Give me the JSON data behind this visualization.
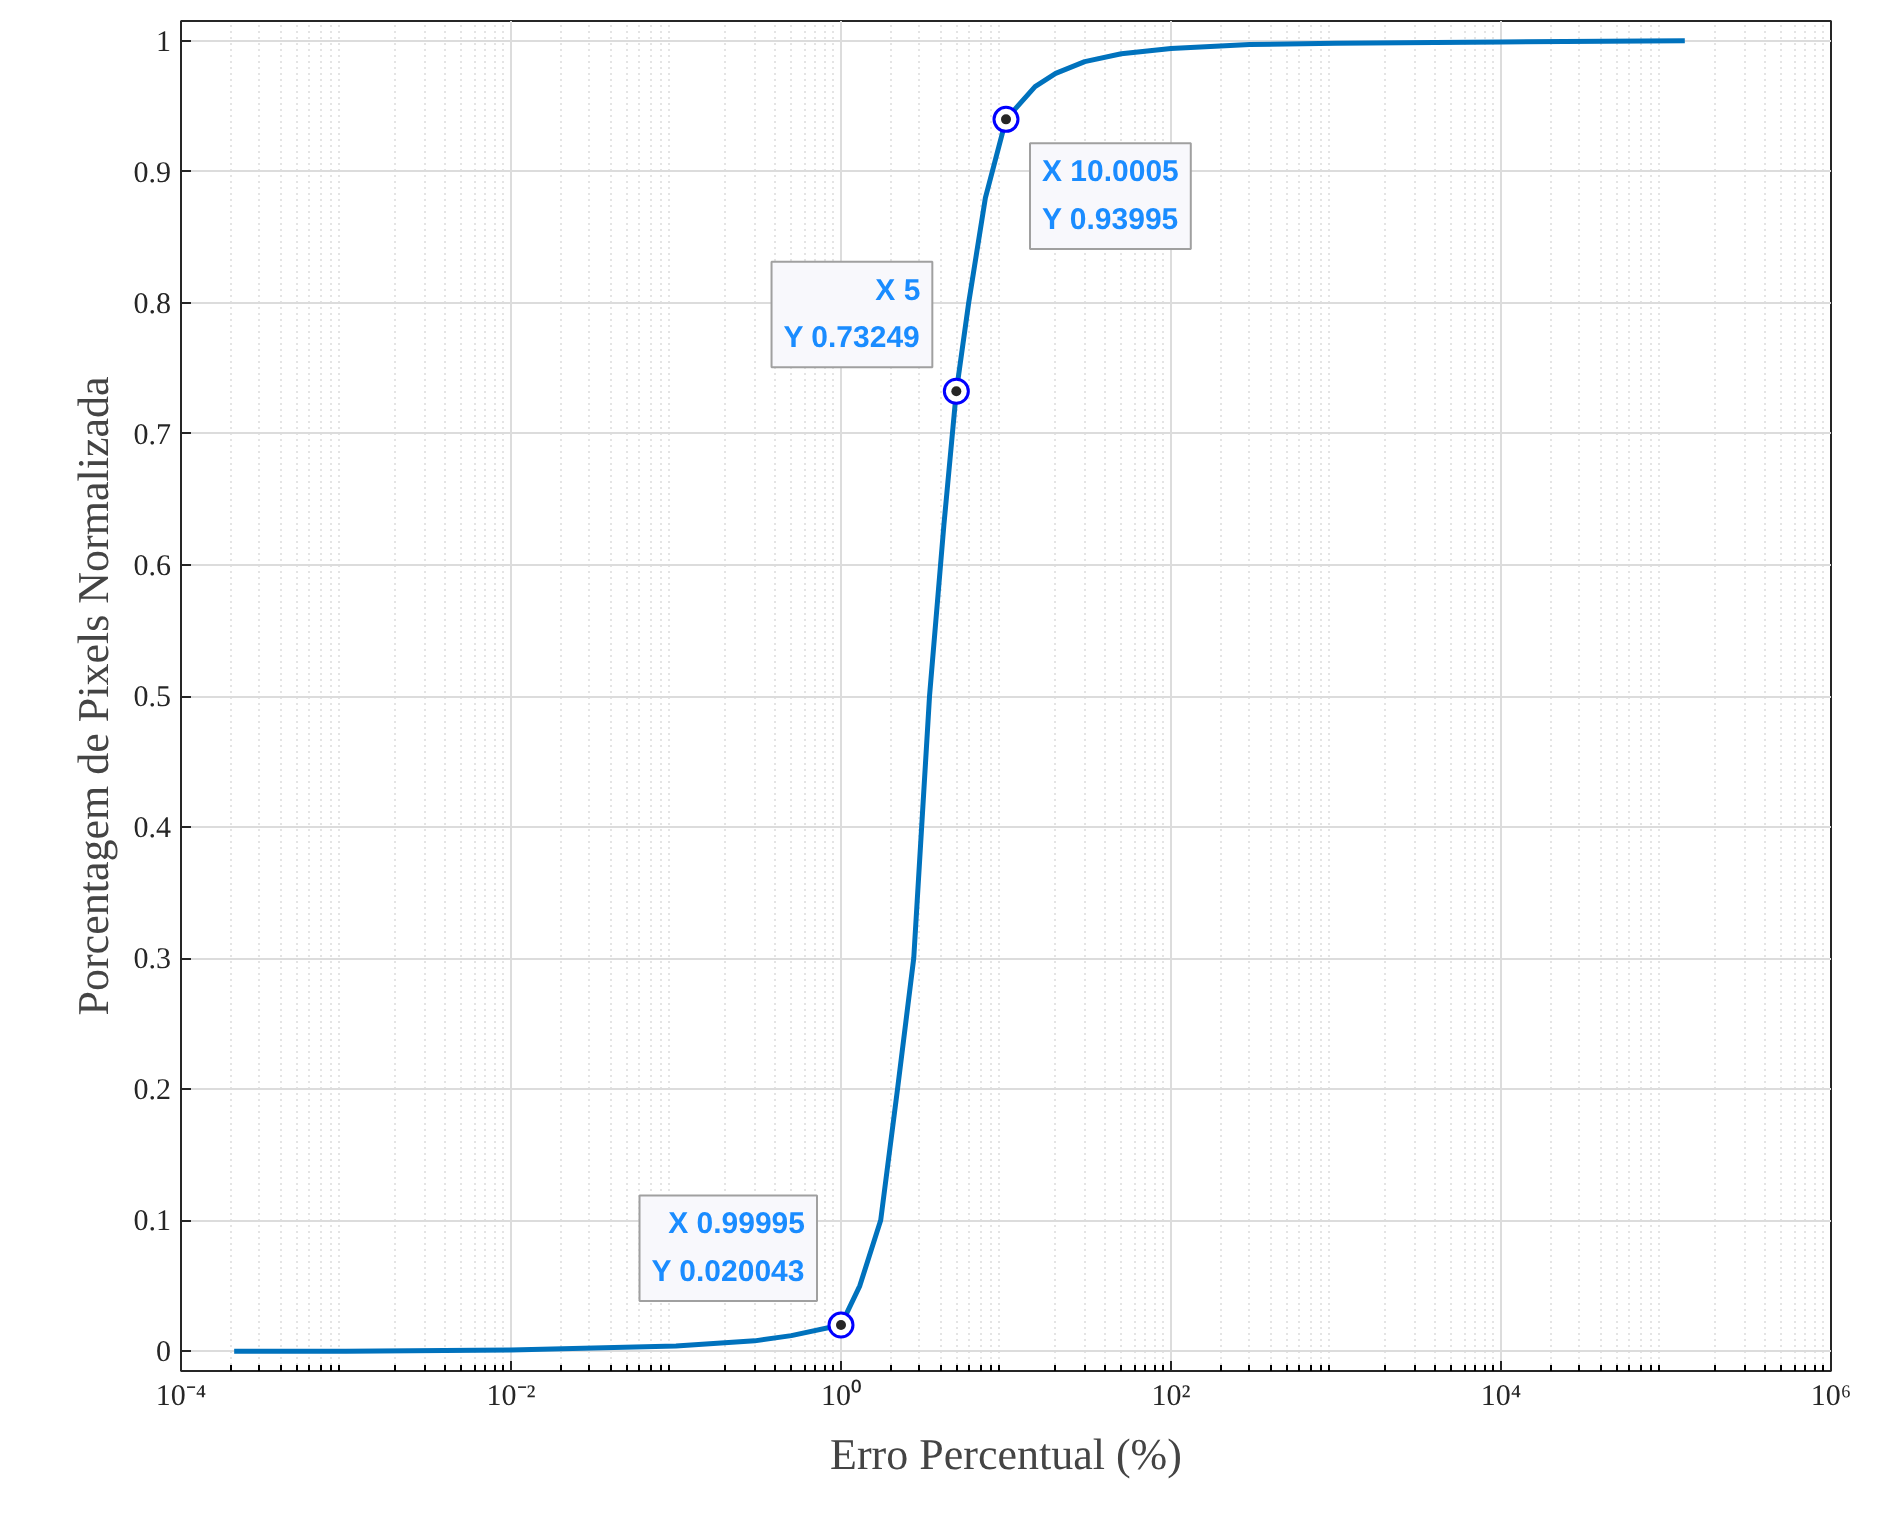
{
  "chart_data": {
    "type": "line",
    "xlabel": "Erro Percentual (%)",
    "ylabel": "Porcentagem de Pixels Normalizada",
    "x": [
      0.00021,
      0.001,
      0.01,
      0.1,
      0.3,
      0.5,
      0.99995,
      1.3,
      1.74,
      2.2,
      2.76,
      3.44,
      4.2,
      5,
      5.94,
      7.5,
      10.0005,
      15,
      20,
      30,
      50,
      100,
      300,
      1000,
      10000,
      130000
    ],
    "series": [
      {
        "color": "#0072bd",
        "values": [
          0,
          0,
          0.001,
          0.004,
          0.008,
          0.012,
          0.020043,
          0.05,
          0.1,
          0.2,
          0.3,
          0.5,
          0.63,
          0.73249,
          0.8,
          0.88,
          0.93995,
          0.965,
          0.975,
          0.984,
          0.99,
          0.994,
          0.997,
          0.998,
          0.999,
          1.0
        ]
      }
    ],
    "log": "x",
    "xlim": [
      0.0001,
      1000000
    ],
    "ylim": [
      -0.015,
      1.015
    ],
    "xticks": [
      {
        "value": 0.0001,
        "label": "10⁻⁴"
      },
      {
        "value": 0.01,
        "label": "10⁻²"
      },
      {
        "value": 1,
        "label": "10⁰"
      },
      {
        "value": 100,
        "label": "10²"
      },
      {
        "value": 10000,
        "label": "10⁴"
      },
      {
        "value": 1000000,
        "label": "10⁶"
      }
    ],
    "yticks": [
      0,
      0.1,
      0.2,
      0.3,
      0.4,
      0.5,
      0.6,
      0.7,
      0.8,
      0.9,
      1
    ],
    "grid": true,
    "line_style": "solid",
    "annotations": [
      {
        "text": "X 0.99995\nY 0.020043",
        "x": 0.99995,
        "y": 0.020043
      },
      {
        "text": "X 5\nY 0.73249",
        "x": 5,
        "y": 0.73249
      },
      {
        "text": "X 10.0005\nY 0.93995",
        "x": 10.0005,
        "y": 0.93995
      }
    ]
  }
}
